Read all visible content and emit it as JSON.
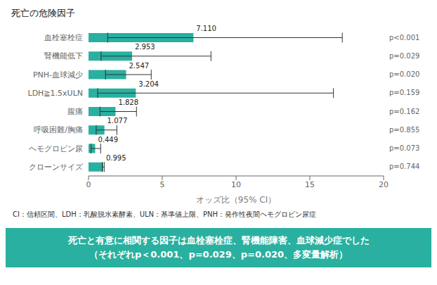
{
  "chart_data": {
    "type": "bar",
    "orientation": "horizontal",
    "title": "死亡の危険因子",
    "categories": [
      "血栓塞栓症",
      "腎機能低下",
      "PNH-血球減少",
      "LDH≧1.5xULN",
      "腹痛",
      "呼吸困難/胸痛",
      "ヘモグロビン尿",
      "クローンサイズ"
    ],
    "values": [
      7.11,
      2.953,
      2.547,
      3.204,
      1.828,
      1.077,
      0.449,
      0.995
    ],
    "value_labels": [
      "7.110",
      "2.953",
      "2.547",
      "3.204",
      "1.828",
      "1.077",
      "0.449",
      "0.995"
    ],
    "data_labels": true,
    "ci_low": [
      1.3,
      0.85,
      1.15,
      0.62,
      0.78,
      0.52,
      0.17,
      0.93
    ],
    "ci_high": [
      17.2,
      8.3,
      4.25,
      16.6,
      3.25,
      1.92,
      0.82,
      1.065
    ],
    "pvalues": [
      "p<0.001",
      "p=0.029",
      "p=0.020",
      "p=0.159",
      "p=0.162",
      "p=0.855",
      "p=0.073",
      "p=0.744"
    ],
    "color": "#29b0a0",
    "xlabel": "オッズ比（95% CI）",
    "xlim": [
      0,
      20
    ],
    "xticks": [
      0,
      5,
      10,
      15,
      20
    ],
    "footnote": "CI：信頼区間、LDH：乳酸脱水素酵素、ULN：基準値上限、PNH：発作性夜間ヘモグロビン尿症",
    "annotations": [
      "死亡と有意に相関する因子は血栓塞栓症、腎機能障害、血球減少症でした",
      "（それぞれp＜0.001、p=0.029、p=0.020、多変量解析）"
    ]
  }
}
